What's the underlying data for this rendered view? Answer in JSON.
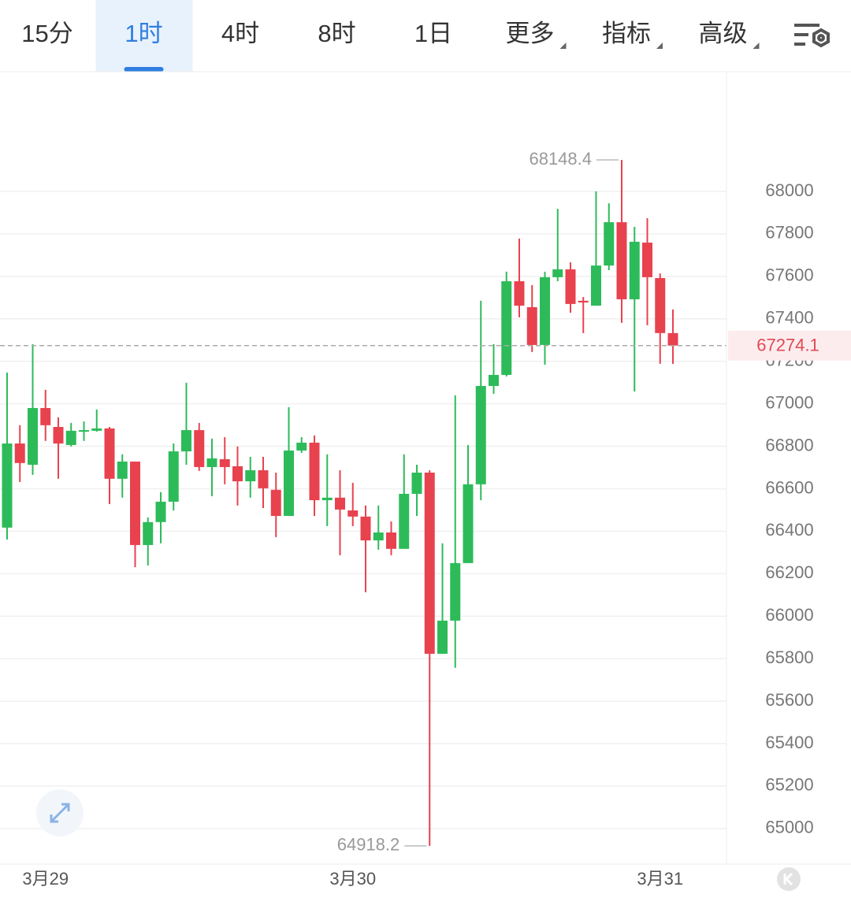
{
  "toolbar": {
    "tabs": [
      {
        "label": "15分",
        "dropdown": false
      },
      {
        "label": "1时",
        "dropdown": false
      },
      {
        "label": "4时",
        "dropdown": false
      },
      {
        "label": "8时",
        "dropdown": false
      },
      {
        "label": "1日",
        "dropdown": false
      },
      {
        "label": "更多",
        "dropdown": true
      },
      {
        "label": "指标",
        "dropdown": true
      },
      {
        "label": "高级",
        "dropdown": true
      }
    ],
    "selected": 1
  },
  "chart_data": {
    "type": "candlestick",
    "categories": [
      null,
      null,
      null,
      "3月29",
      null,
      null,
      null,
      null,
      null,
      null,
      null,
      null,
      null,
      null,
      null,
      null,
      null,
      null,
      null,
      null,
      null,
      null,
      null,
      null,
      null,
      null,
      null,
      "3月30",
      null,
      null,
      null,
      null,
      null,
      null,
      null,
      null,
      null,
      null,
      null,
      null,
      null,
      null,
      null,
      null,
      null,
      null,
      null,
      null,
      null,
      null,
      null,
      "3月31",
      null
    ],
    "open": [
      66417,
      66813,
      66713,
      66980,
      66891,
      66806,
      66873,
      66873,
      66884,
      66647,
      66728,
      66335,
      66443,
      66539,
      66776,
      66876,
      66702,
      66739,
      66706,
      66635,
      66687,
      66595,
      66472,
      66780,
      66817,
      66546,
      66558,
      66498,
      66469,
      66357,
      66394,
      66317,
      66576,
      66676,
      65823,
      65979,
      66250,
      66621,
      67084,
      67136,
      67577,
      67455,
      67277,
      67596,
      67633,
      67485,
      67462,
      67651,
      67855,
      67492,
      67759,
      67592,
      67333
    ],
    "high": [
      67147,
      66899,
      67281,
      67066,
      66936,
      66910,
      66917,
      66973,
      66891,
      66762,
      66728,
      66465,
      66584,
      66813,
      67099,
      66910,
      66836,
      66843,
      66799,
      66750,
      66750,
      66676,
      66984,
      66843,
      66851,
      66762,
      66687,
      66628,
      66521,
      66521,
      66446,
      66762,
      66713,
      66687,
      66343,
      67040,
      66806,
      67485,
      67281,
      67622,
      67778,
      67559,
      67622,
      67918,
      67666,
      67503,
      68000,
      67944,
      68148.4,
      67833,
      67874,
      67614,
      67444
    ],
    "low": [
      66361,
      66632,
      66665,
      66825,
      66647,
      66799,
      66825,
      66869,
      66528,
      66558,
      66231,
      66239,
      66343,
      66498,
      66713,
      66684,
      66565,
      66621,
      66521,
      66558,
      66509,
      66372,
      66472,
      66769,
      66472,
      66424,
      66287,
      66424,
      66113,
      66313,
      66287,
      66317,
      66472,
      64918.2,
      65823,
      65757,
      66250,
      66546,
      67047,
      67129,
      67407,
      67244,
      67184,
      67577,
      67429,
      67333,
      67462,
      67629,
      67381,
      67058,
      67370,
      67188,
      67188
    ],
    "close": [
      66813,
      66721,
      66980,
      66899,
      66813,
      66873,
      66876,
      66884,
      66647,
      66728,
      66335,
      66443,
      66539,
      66776,
      66876,
      66702,
      66743,
      66702,
      66635,
      66687,
      66602,
      66472,
      66780,
      66817,
      66546,
      66558,
      66502,
      66469,
      66357,
      66394,
      66317,
      66576,
      66676,
      65823,
      65979,
      66250,
      66621,
      67084,
      67136,
      67577,
      67462,
      67277,
      67596,
      67633,
      67470,
      67477,
      67651,
      67855,
      67492,
      67763,
      67596,
      67333,
      67274.1
    ],
    "up_color": "#2dbb5a",
    "down_color": "#e8424f",
    "ylim": [
      64840,
      68560
    ],
    "yticks": [
      65000,
      65200,
      65400,
      65600,
      65800,
      66000,
      66200,
      66400,
      66600,
      66800,
      67000,
      67200,
      67400,
      67600,
      67800,
      68000
    ],
    "grid": true
  }
}
